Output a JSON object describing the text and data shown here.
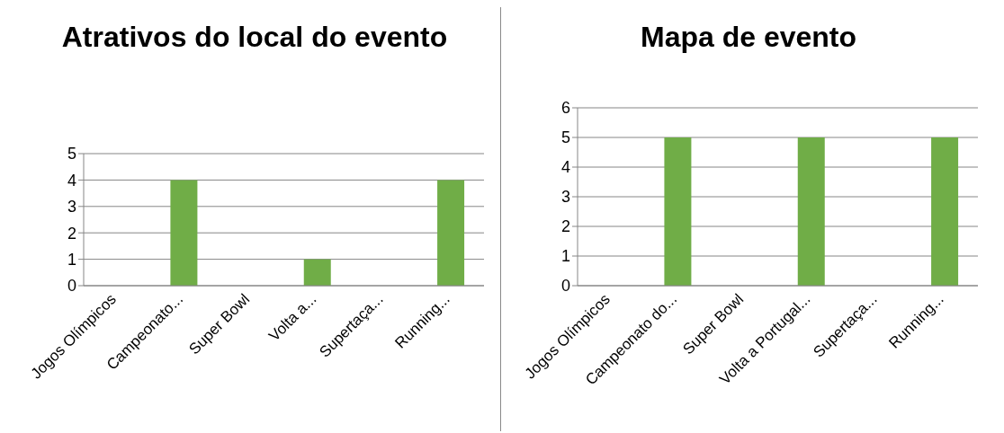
{
  "chart_data": [
    {
      "type": "bar",
      "title": "Atrativos do local do evento",
      "categories": [
        "Jogos Olímpicos",
        "Campeonato...",
        "Super Bowl",
        "Volta a...",
        "Supertaça...",
        "Running..."
      ],
      "values": [
        0,
        4,
        0,
        1,
        0,
        4
      ],
      "color": "#70ad47",
      "ylim": [
        0,
        5
      ],
      "yticks": [
        0,
        1,
        2,
        3,
        4,
        5
      ],
      "grid": "y"
    },
    {
      "type": "bar",
      "title": "Mapa de evento",
      "categories": [
        "Jogos Olímpicos",
        "Campeonato do...",
        "Super Bowl",
        "Volta a Portugal...",
        "Supertaça...",
        "Running..."
      ],
      "values": [
        0,
        5,
        0,
        5,
        0,
        5
      ],
      "color": "#70ad47",
      "ylim": [
        0,
        6
      ],
      "yticks": [
        0,
        1,
        2,
        3,
        4,
        5,
        6
      ],
      "grid": "y"
    }
  ]
}
